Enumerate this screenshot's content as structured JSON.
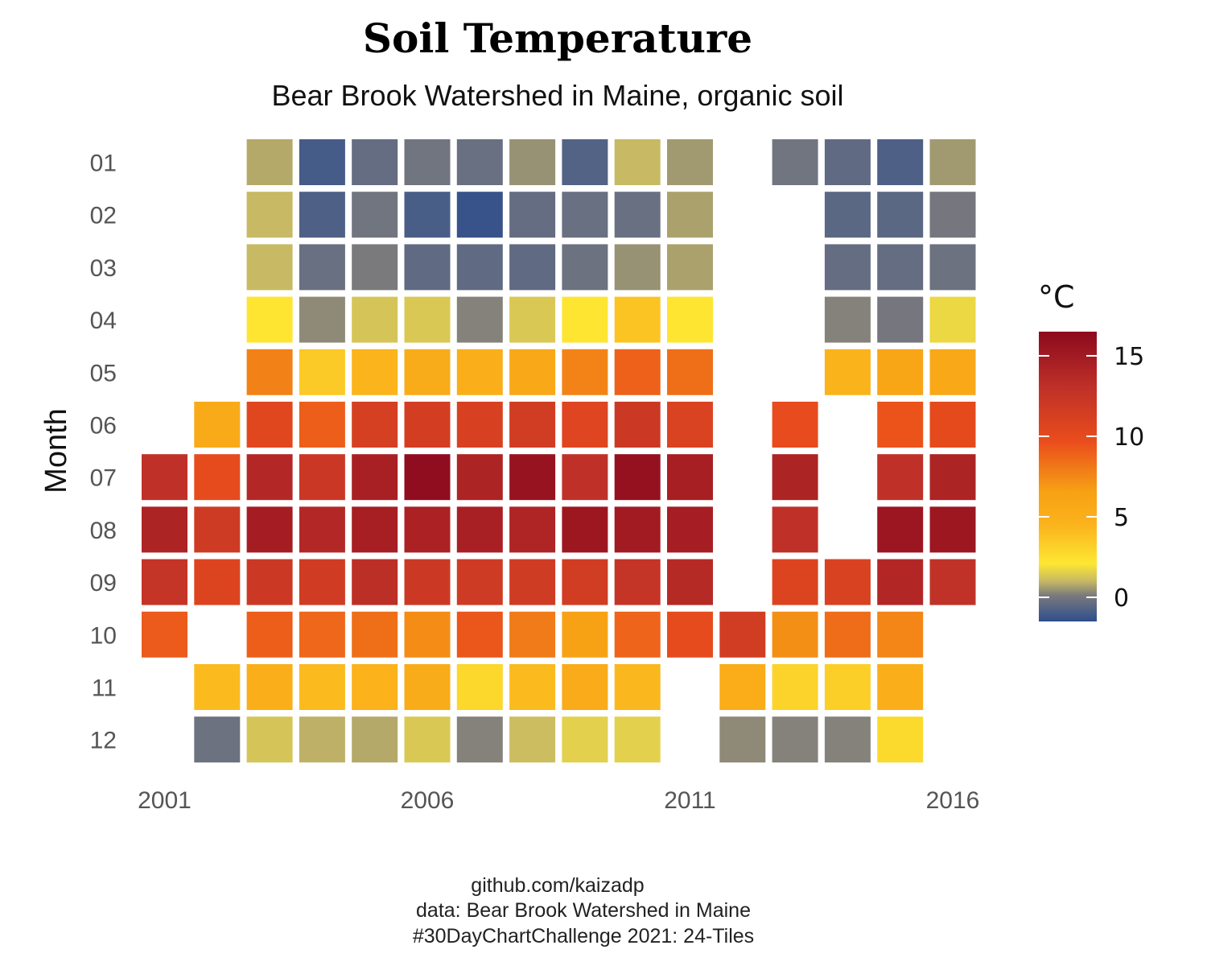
{
  "chart_data": {
    "type": "heatmap",
    "title": "Soil Temperature",
    "subtitle": "Bear Brook Watershed in Maine, organic soil",
    "xlabel": "",
    "ylabel": "Month",
    "x_ticks": [
      "2001",
      "2006",
      "2011",
      "2016"
    ],
    "y_ticks": [
      "01",
      "02",
      "03",
      "04",
      "05",
      "06",
      "07",
      "08",
      "09",
      "10",
      "11",
      "12"
    ],
    "years": [
      2001,
      2002,
      2003,
      2004,
      2005,
      2006,
      2007,
      2008,
      2009,
      2010,
      2011,
      2012,
      2013,
      2014,
      2015,
      2016
    ],
    "months": [
      "01",
      "02",
      "03",
      "04",
      "05",
      "06",
      "07",
      "08",
      "09",
      "10",
      "11",
      "12"
    ],
    "values": [
      [
        null,
        null,
        0.8,
        -1.0,
        -0.3,
        0.0,
        -0.2,
        0.5,
        -0.7,
        1.0,
        0.6,
        null,
        0.0,
        -0.4,
        -0.8,
        0.6
      ],
      [
        null,
        null,
        1.0,
        -0.8,
        0.0,
        -0.9,
        -1.3,
        -0.3,
        -0.2,
        -0.2,
        0.7,
        null,
        null,
        -0.5,
        -0.5,
        0.1
      ],
      [
        null,
        null,
        1.0,
        -0.2,
        0.2,
        -0.4,
        -0.4,
        -0.4,
        -0.1,
        0.5,
        0.7,
        null,
        null,
        -0.3,
        -0.3,
        -0.1
      ],
      [
        null,
        null,
        2.3,
        0.4,
        1.3,
        1.4,
        0.3,
        1.4,
        2.3,
        3.8,
        2.3,
        null,
        null,
        0.3,
        0.1,
        1.8
      ],
      [
        null,
        null,
        7.7,
        3.5,
        4.5,
        5.3,
        5.0,
        5.8,
        7.6,
        8.8,
        8.3,
        null,
        null,
        4.6,
        6.1,
        5.8
      ],
      [
        null,
        5.5,
        10.2,
        8.9,
        11.2,
        11.4,
        11.0,
        11.5,
        10.5,
        12.0,
        10.8,
        null,
        9.7,
        null,
        9.3,
        9.9
      ],
      [
        null,
        9.8,
        13.8,
        12.1,
        14.5,
        16.2,
        14.2,
        15.7,
        13.0,
        15.9,
        14.6,
        null,
        14.2,
        null,
        13.0,
        14.2
      ],
      [
        null,
        null,
        14.8,
        13.8,
        14.6,
        14.3,
        14.5,
        14.1,
        15.3,
        15.0,
        14.7,
        null,
        13.0,
        null,
        15.4,
        15.3
      ],
      [
        null,
        null,
        12.0,
        11.6,
        13.2,
        12.0,
        11.8,
        11.7,
        11.5,
        12.6,
        13.6,
        null,
        10.6,
        10.9,
        13.9,
        12.9
      ],
      [
        null,
        null,
        8.9,
        8.6,
        8.3,
        7.3,
        9.2,
        7.9,
        6.4,
        8.7,
        9.8,
        11.5,
        7.2,
        8.4,
        7.5,
        null
      ],
      [
        null,
        null,
        5.0,
        4.2,
        4.7,
        5.3,
        2.9,
        4.2,
        5.4,
        4.3,
        null,
        5.2,
        3.1,
        3.3,
        5.0,
        null
      ],
      [
        null,
        null,
        1.3,
        0.9,
        0.8,
        1.4,
        0.3,
        1.1,
        1.6,
        1.6,
        null,
        0.4,
        0.3,
        0.3,
        2.8,
        null
      ]
    ],
    "values_2001": [
      null,
      null,
      null,
      null,
      null,
      null,
      13.0,
      14.2,
      12.6,
      9.0,
      null,
      null
    ],
    "values_2002_extra": {
      "07": 9.8,
      "08": 11.8,
      "09": 10.6,
      "11": 4.2,
      "12": -0.1
    },
    "legend": {
      "title": "°C",
      "ticks": [
        0,
        5,
        10,
        15
      ],
      "range": [
        -1.5,
        16.5
      ],
      "colors": [
        "#2f4e8c",
        "#7a7a7d",
        "#c8b964",
        "#fde733",
        "#fbb41c",
        "#f7a014",
        "#ea4d1c",
        "#c03228",
        "#8c0a1e"
      ]
    },
    "grid": false,
    "legend_position": "right"
  },
  "caption": {
    "line1": "github.com/kaizadp",
    "line2": "data: Bear Brook Watershed in Maine",
    "line3": "#30DayChartChallenge 2021: 24-Tiles"
  }
}
